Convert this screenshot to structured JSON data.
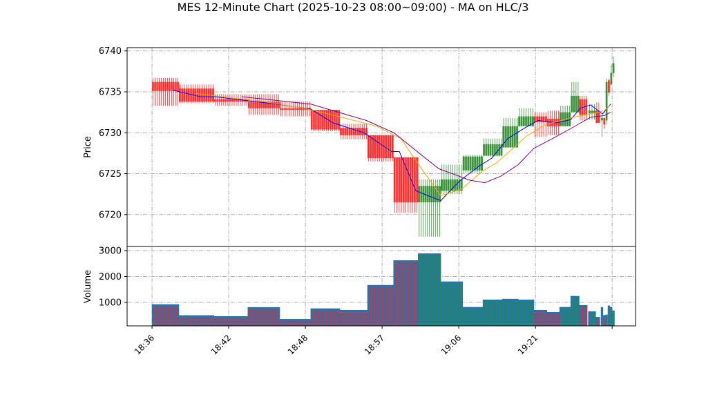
{
  "chart_data": {
    "type": "candlestick",
    "title": "MES 12-Minute Chart (2025-10-23 08:00~09:00) - MA on HLC/3",
    "price_panel": {
      "ylabel": "Price",
      "ylim": [
        6716.1,
        6740.4
      ],
      "yticks": [
        6720,
        6725,
        6730,
        6735,
        6740
      ],
      "grid": true
    },
    "volume_panel": {
      "ylabel": "Volume",
      "ylim": [
        93,
        3160
      ],
      "yticks": [
        1000,
        2000,
        3000
      ],
      "grid": true
    },
    "x_axis": {
      "xlim": [
        -6.5,
        126.1
      ],
      "ticks": [
        {
          "index": 0,
          "label": "18:36"
        },
        {
          "index": 20,
          "label": "18:42"
        },
        {
          "index": 40,
          "label": "18:48"
        },
        {
          "index": 60,
          "label": "18:57"
        },
        {
          "index": 80,
          "label": "19:06"
        },
        {
          "index": 100,
          "label": "19:21"
        },
        {
          "index": 120,
          "label": ""
        }
      ]
    },
    "colors": {
      "up": "#2e8b2e",
      "down": "#ff2020",
      "volume": "#1f77b4",
      "ma_fast": "#0000ff",
      "ma_mid": "#ffa500",
      "ma_slow": "#800080",
      "grid": "#b0b0b0"
    },
    "blocks": [
      {
        "x0": 0,
        "x1": 7,
        "open": 6736.2,
        "high": 6736.7,
        "low": 6733.3,
        "close": 6735.1,
        "volume": 920
      },
      {
        "x0": 7,
        "x1": 16.2,
        "open": 6735.4,
        "high": 6735.9,
        "low": 6733.6,
        "close": 6733.8,
        "volume": 495
      },
      {
        "x0": 16.2,
        "x1": 25,
        "open": 6734.1,
        "high": 6734.7,
        "low": 6733.3,
        "close": 6733.8,
        "volume": 460
      },
      {
        "x0": 25,
        "x1": 33.3,
        "open": 6733.8,
        "high": 6734.7,
        "low": 6732.2,
        "close": 6733.0,
        "volume": 810
      },
      {
        "x0": 33.3,
        "x1": 41.4,
        "open": 6733.0,
        "high": 6733.8,
        "low": 6732.0,
        "close": 6732.8,
        "volume": 350
      },
      {
        "x0": 41.4,
        "x1": 49,
        "open": 6732.8,
        "high": 6732.8,
        "low": 6730.2,
        "close": 6730.4,
        "volume": 760
      },
      {
        "x0": 49,
        "x1": 56.2,
        "open": 6730.6,
        "high": 6731.1,
        "low": 6729.2,
        "close": 6729.7,
        "volume": 700
      },
      {
        "x0": 56.2,
        "x1": 63,
        "open": 6729.7,
        "high": 6729.7,
        "low": 6726.5,
        "close": 6726.9,
        "volume": 1665
      },
      {
        "x0": 63,
        "x1": 69.4,
        "open": 6727.0,
        "high": 6727.0,
        "low": 6720.2,
        "close": 6721.5,
        "volume": 2620
      },
      {
        "x0": 69.4,
        "x1": 75.3,
        "open": 6721.5,
        "high": 6724.3,
        "low": 6717.3,
        "close": 6723.5,
        "volume": 2885
      },
      {
        "x0": 75.3,
        "x1": 81,
        "open": 6722.9,
        "high": 6726.1,
        "low": 6722.5,
        "close": 6724.3,
        "volume": 1800
      },
      {
        "x0": 81,
        "x1": 86.3,
        "open": 6725.4,
        "high": 6727.3,
        "low": 6725.1,
        "close": 6727.1,
        "volume": 815
      },
      {
        "x0": 86.3,
        "x1": 91.4,
        "open": 6727.2,
        "high": 6729.3,
        "low": 6727.1,
        "close": 6728.6,
        "volume": 1100
      },
      {
        "x0": 91.4,
        "x1": 95.5,
        "open": 6728.2,
        "high": 6731.8,
        "low": 6728.2,
        "close": 6730.8,
        "volume": 1130
      },
      {
        "x0": 95.5,
        "x1": 99.6,
        "open": 6730.8,
        "high": 6733.0,
        "low": 6730.8,
        "close": 6732.0,
        "volume": 1100
      },
      {
        "x0": 99.6,
        "x1": 103,
        "open": 6732.0,
        "high": 6732.5,
        "low": 6729.5,
        "close": 6731.3,
        "volume": 700
      },
      {
        "x0": 103,
        "x1": 106.3,
        "open": 6731.7,
        "high": 6732.7,
        "low": 6729.7,
        "close": 6730.8,
        "volume": 620
      },
      {
        "x0": 106.3,
        "x1": 109.2,
        "open": 6730.8,
        "high": 6733.3,
        "low": 6730.8,
        "close": 6732.5,
        "volume": 815
      },
      {
        "x0": 109.2,
        "x1": 111.4,
        "open": 6732.5,
        "high": 6736.2,
        "low": 6732.5,
        "close": 6734.5,
        "volume": 1240
      },
      {
        "x0": 111.4,
        "x1": 113.5,
        "open": 6734.1,
        "high": 6734.5,
        "low": 6731.5,
        "close": 6732.2,
        "volume": 885
      },
      {
        "x0": 113.8,
        "x1": 115.7,
        "open": 6732.4,
        "high": 6733.5,
        "low": 6731.6,
        "close": 6732.7,
        "volume": 650
      },
      {
        "x0": 115.7,
        "x1": 116.8,
        "open": 6732.7,
        "high": 6733.7,
        "low": 6731.2,
        "close": 6731.2,
        "volume": 430
      },
      {
        "x0": 117.1,
        "x1": 117.6,
        "open": 6731.5,
        "high": 6732.2,
        "low": 6729.5,
        "close": 6731.8,
        "volume": 810
      },
      {
        "x0": 117.7,
        "x1": 118.2,
        "open": 6731.8,
        "high": 6731.9,
        "low": 6730.5,
        "close": 6731.0,
        "volume": 500
      },
      {
        "x0": 118.3,
        "x1": 118.8,
        "open": 6731.5,
        "high": 6736.6,
        "low": 6731.0,
        "close": 6736.2,
        "volume": 520
      },
      {
        "x0": 118.9,
        "x1": 119.4,
        "open": 6736.4,
        "high": 6736.6,
        "low": 6734.5,
        "close": 6734.9,
        "volume": 870
      },
      {
        "x0": 119.5,
        "x1": 120.0,
        "open": 6735.9,
        "high": 6738.3,
        "low": 6735.8,
        "close": 6737.3,
        "volume": 815
      },
      {
        "x0": 120.1,
        "x1": 120.6,
        "open": 6737.3,
        "high": 6739.3,
        "low": 6736.8,
        "close": 6738.5,
        "volume": 680
      }
    ],
    "ma_series": [
      {
        "name": "ma_fast",
        "points": [
          [
            5.4,
            6735.2
          ],
          [
            12.6,
            6734.4
          ],
          [
            16.4,
            6734.4
          ],
          [
            25.2,
            6733.9
          ],
          [
            32.4,
            6733.5
          ],
          [
            41.4,
            6732.9
          ],
          [
            47.2,
            6731.2
          ],
          [
            55.3,
            6730.0
          ],
          [
            62.5,
            6727.7
          ],
          [
            64.5,
            6727.7
          ],
          [
            68.8,
            6722.9
          ],
          [
            75.3,
            6721.7
          ],
          [
            80.2,
            6724.1
          ],
          [
            85.2,
            6725.9
          ],
          [
            88.6,
            6726.9
          ],
          [
            92.8,
            6729.3
          ],
          [
            96.9,
            6730.5
          ],
          [
            100.7,
            6731.5
          ],
          [
            105.4,
            6731.2
          ],
          [
            109.2,
            6731.6
          ],
          [
            111.7,
            6733.0
          ],
          [
            114.4,
            6733.4
          ],
          [
            117.5,
            6732.3
          ],
          [
            119.6,
            6733.5
          ]
        ]
      },
      {
        "name": "ma_mid",
        "points": [
          [
            11.7,
            6734.8
          ],
          [
            19.8,
            6734.3
          ],
          [
            27.9,
            6733.9
          ],
          [
            39.6,
            6733.0
          ],
          [
            48.6,
            6732.0
          ],
          [
            58.6,
            6730.8
          ],
          [
            64.9,
            6729.3
          ],
          [
            68.5,
            6726.8
          ],
          [
            75.3,
            6722.3
          ],
          [
            80.7,
            6723.1
          ],
          [
            86.1,
            6725.3
          ],
          [
            90.1,
            6726.4
          ],
          [
            97.7,
            6729.6
          ],
          [
            102.7,
            6731.0
          ],
          [
            109.9,
            6731.9
          ],
          [
            115.3,
            6732.4
          ],
          [
            118.0,
            6732.7
          ],
          [
            119.6,
            6733.4
          ]
        ]
      },
      {
        "name": "ma_slow",
        "points": [
          [
            23.4,
            6734.4
          ],
          [
            41.4,
            6733.5
          ],
          [
            55.9,
            6731.5
          ],
          [
            63.1,
            6730.0
          ],
          [
            69.4,
            6727.6
          ],
          [
            74.8,
            6725.6
          ],
          [
            82.9,
            6724.2
          ],
          [
            86.8,
            6723.9
          ],
          [
            91.0,
            6724.7
          ],
          [
            95.5,
            6726.1
          ],
          [
            99.6,
            6728.1
          ],
          [
            104.5,
            6729.3
          ],
          [
            109.9,
            6730.7
          ],
          [
            114.4,
            6731.9
          ],
          [
            118.0,
            6732.1
          ],
          [
            119.6,
            6732.5
          ]
        ]
      }
    ]
  }
}
